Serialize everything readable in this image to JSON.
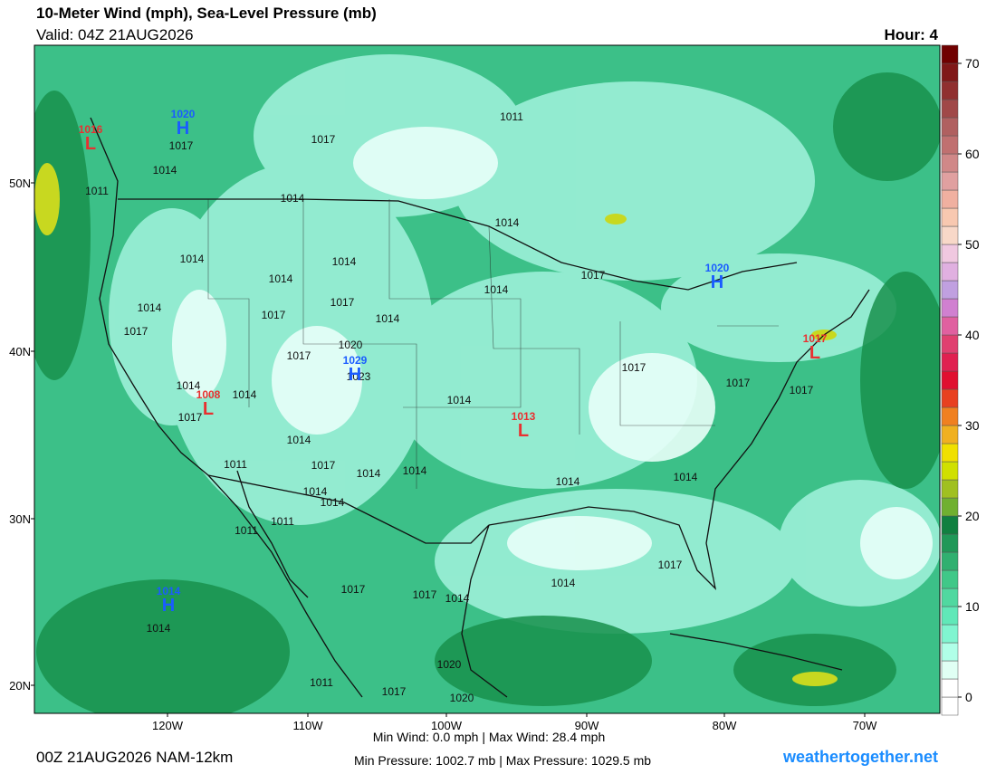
{
  "header": {
    "title": "10-Meter Wind (mph), Sea-Level Pressure (mb)",
    "valid": "Valid: 04Z 21AUG2026",
    "hour": "Hour: 4"
  },
  "map": {
    "lat_labels": [
      "50N",
      "40N",
      "30N",
      "20N"
    ],
    "lon_labels": [
      "120W",
      "110W",
      "100W",
      "90W",
      "80W",
      "70W"
    ],
    "pressure_centers": [
      {
        "kind": "H",
        "value": "1020"
      },
      {
        "kind": "L",
        "value": "1016"
      },
      {
        "kind": "H",
        "value": "1029"
      },
      {
        "kind": "L",
        "value": "1008"
      },
      {
        "kind": "L",
        "value": "1013"
      },
      {
        "kind": "H",
        "value": "1020"
      },
      {
        "kind": "L",
        "value": "1017"
      },
      {
        "kind": "H",
        "value": "1014"
      }
    ],
    "isobar_labels": [
      "1017",
      "1014",
      "1011",
      "1017",
      "1014",
      "1011",
      "1014",
      "1014",
      "1017",
      "1014",
      "1014",
      "1014",
      "1017",
      "1014",
      "1017",
      "1017",
      "1014",
      "1020",
      "1023",
      "1014",
      "1014",
      "1014",
      "1017",
      "1017",
      "1014",
      "1017",
      "1014",
      "1011",
      "1014",
      "1011",
      "1011",
      "1014",
      "1014",
      "1017",
      "1014",
      "1014",
      "1017",
      "1017",
      "1017",
      "1014",
      "1017",
      "1017",
      "1020",
      "1017",
      "1020",
      "1014",
      "1011",
      "1014"
    ]
  },
  "colorbar": {
    "ticks": [
      0,
      10,
      20,
      30,
      40,
      50,
      60,
      70
    ],
    "lim": [
      -2,
      72
    ],
    "colors": [
      "#ffffff",
      "#ffffff",
      "#e0fff4",
      "#b0ffe8",
      "#80f5d0",
      "#60e8b8",
      "#50d8a0",
      "#40c888",
      "#30b070",
      "#209858",
      "#108040",
      "#70b030",
      "#a0c020",
      "#d0e000",
      "#f0e000",
      "#f0b020",
      "#f08020",
      "#e84020",
      "#e01030",
      "#e02050",
      "#e04070",
      "#e060a0",
      "#d080d0",
      "#c0a0e0",
      "#e0b0e0",
      "#f0c8e0",
      "#f8d8c8",
      "#f8c8b0",
      "#f0b0a0",
      "#e0a0a0",
      "#d08888",
      "#c07070",
      "#b06060",
      "#a04848",
      "#903030",
      "#801818",
      "#700000"
    ]
  },
  "footer": {
    "run": "00Z 21AUG2026 NAM-12km",
    "wind": "Min Wind: 0.0 mph | Max Wind: 28.4 mph",
    "pressure": "Min Pressure: 1002.7 mb | Max Pressure: 1029.5 mb",
    "site": "weathertogether.net"
  }
}
